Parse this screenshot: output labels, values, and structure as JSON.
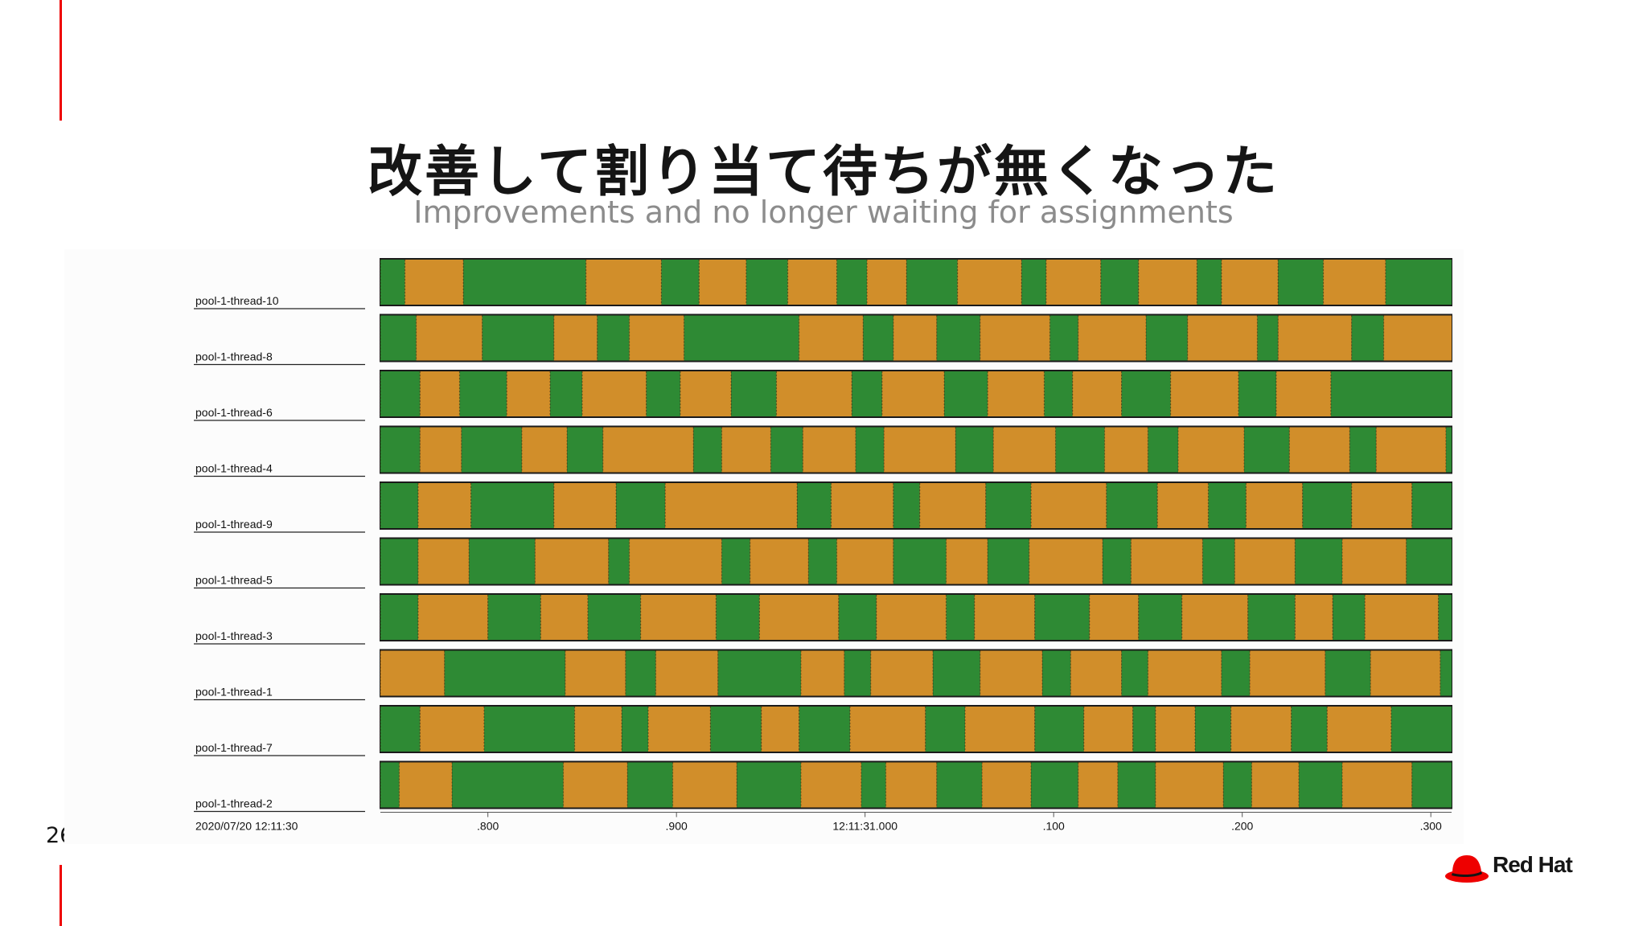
{
  "slide": {
    "title": "改善して割り当て待ちが無くなった",
    "subtitle": "Improvements and no longer waiting for assignments",
    "page_number": "26",
    "logo_text": "Red Hat"
  },
  "colors": {
    "running": "#2e8a34",
    "waiting": "#d18e2a",
    "accent": "#ee0000"
  },
  "chart_data": {
    "type": "timeline",
    "x_start_label": "2020/07/20 12:11:30",
    "x_ticks": [
      {
        "value": 0.8,
        "label": ".800"
      },
      {
        "value": 0.9,
        "label": ".900"
      },
      {
        "value": 1.0,
        "label": "12:11:31.000"
      },
      {
        "value": 1.1,
        "label": ".100"
      },
      {
        "value": 1.2,
        "label": ".200"
      },
      {
        "value": 1.3,
        "label": ".300"
      }
    ],
    "xlim": [
      0.743,
      1.311
    ],
    "x_unit": "seconds after 2020/07/20 12:11:30",
    "states": [
      "running",
      "waiting"
    ],
    "threads": [
      {
        "name": "pool-1-thread-10",
        "segments": [
          [
            "running",
            0.743,
            0.756
          ],
          [
            "waiting",
            0.756,
            0.787
          ],
          [
            "running",
            0.787,
            0.852
          ],
          [
            "waiting",
            0.852,
            0.892
          ],
          [
            "running",
            0.892,
            0.912
          ],
          [
            "waiting",
            0.912,
            0.937
          ],
          [
            "running",
            0.937,
            0.959
          ],
          [
            "waiting",
            0.959,
            0.985
          ],
          [
            "running",
            0.985,
            1.001
          ],
          [
            "waiting",
            1.001,
            1.022
          ],
          [
            "running",
            1.022,
            1.049
          ],
          [
            "waiting",
            1.049,
            1.083
          ],
          [
            "running",
            1.083,
            1.096
          ],
          [
            "waiting",
            1.096,
            1.125
          ],
          [
            "running",
            1.125,
            1.145
          ],
          [
            "waiting",
            1.145,
            1.176
          ],
          [
            "running",
            1.176,
            1.189
          ],
          [
            "waiting",
            1.189,
            1.219
          ],
          [
            "running",
            1.219,
            1.243
          ],
          [
            "waiting",
            1.243,
            1.276
          ],
          [
            "running",
            1.276,
            1.311
          ]
        ]
      },
      {
        "name": "pool-1-thread-8",
        "segments": [
          [
            "running",
            0.743,
            0.762
          ],
          [
            "waiting",
            0.762,
            0.797
          ],
          [
            "running",
            0.797,
            0.835
          ],
          [
            "waiting",
            0.835,
            0.858
          ],
          [
            "running",
            0.858,
            0.875
          ],
          [
            "waiting",
            0.875,
            0.904
          ],
          [
            "running",
            0.904,
            0.965
          ],
          [
            "waiting",
            0.965,
            0.999
          ],
          [
            "running",
            0.999,
            1.015
          ],
          [
            "waiting",
            1.015,
            1.038
          ],
          [
            "running",
            1.038,
            1.061
          ],
          [
            "waiting",
            1.061,
            1.098
          ],
          [
            "running",
            1.098,
            1.113
          ],
          [
            "waiting",
            1.113,
            1.149
          ],
          [
            "running",
            1.149,
            1.171
          ],
          [
            "waiting",
            1.171,
            1.208
          ],
          [
            "running",
            1.208,
            1.219
          ],
          [
            "waiting",
            1.219,
            1.258
          ],
          [
            "running",
            1.258,
            1.275
          ],
          [
            "waiting",
            1.275,
            1.311
          ]
        ]
      },
      {
        "name": "pool-1-thread-6",
        "segments": [
          [
            "running",
            0.743,
            0.764
          ],
          [
            "waiting",
            0.764,
            0.785
          ],
          [
            "running",
            0.785,
            0.81
          ],
          [
            "waiting",
            0.81,
            0.833
          ],
          [
            "running",
            0.833,
            0.85
          ],
          [
            "waiting",
            0.85,
            0.884
          ],
          [
            "running",
            0.884,
            0.902
          ],
          [
            "waiting",
            0.902,
            0.929
          ],
          [
            "running",
            0.929,
            0.953
          ],
          [
            "waiting",
            0.953,
            0.993
          ],
          [
            "running",
            0.993,
            1.009
          ],
          [
            "waiting",
            1.009,
            1.042
          ],
          [
            "running",
            1.042,
            1.065
          ],
          [
            "waiting",
            1.065,
            1.095
          ],
          [
            "running",
            1.095,
            1.11
          ],
          [
            "waiting",
            1.11,
            1.136
          ],
          [
            "running",
            1.136,
            1.162
          ],
          [
            "waiting",
            1.162,
            1.198
          ],
          [
            "running",
            1.198,
            1.218
          ],
          [
            "waiting",
            1.218,
            1.247
          ],
          [
            "running",
            1.247,
            1.311
          ]
        ]
      },
      {
        "name": "pool-1-thread-4",
        "segments": [
          [
            "running",
            0.743,
            0.764
          ],
          [
            "waiting",
            0.764,
            0.786
          ],
          [
            "running",
            0.786,
            0.818
          ],
          [
            "waiting",
            0.818,
            0.842
          ],
          [
            "running",
            0.842,
            0.861
          ],
          [
            "waiting",
            0.861,
            0.909
          ],
          [
            "running",
            0.909,
            0.924
          ],
          [
            "waiting",
            0.924,
            0.95
          ],
          [
            "running",
            0.95,
            0.967
          ],
          [
            "waiting",
            0.967,
            0.995
          ],
          [
            "running",
            0.995,
            1.01
          ],
          [
            "waiting",
            1.01,
            1.048
          ],
          [
            "running",
            1.048,
            1.068
          ],
          [
            "waiting",
            1.068,
            1.101
          ],
          [
            "running",
            1.101,
            1.127
          ],
          [
            "waiting",
            1.127,
            1.15
          ],
          [
            "running",
            1.15,
            1.166
          ],
          [
            "waiting",
            1.166,
            1.201
          ],
          [
            "running",
            1.201,
            1.225
          ],
          [
            "waiting",
            1.225,
            1.257
          ],
          [
            "running",
            1.257,
            1.271
          ],
          [
            "waiting",
            1.271,
            1.308
          ],
          [
            "running",
            1.308,
            1.311
          ]
        ]
      },
      {
        "name": "pool-1-thread-9",
        "segments": [
          [
            "running",
            0.743,
            0.763
          ],
          [
            "waiting",
            0.763,
            0.791
          ],
          [
            "running",
            0.791,
            0.835
          ],
          [
            "waiting",
            0.835,
            0.868
          ],
          [
            "running",
            0.868,
            0.894
          ],
          [
            "waiting",
            0.894,
            0.964
          ],
          [
            "running",
            0.964,
            0.982
          ],
          [
            "waiting",
            0.982,
            1.015
          ],
          [
            "running",
            1.015,
            1.029
          ],
          [
            "waiting",
            1.029,
            1.064
          ],
          [
            "running",
            1.064,
            1.088
          ],
          [
            "waiting",
            1.088,
            1.128
          ],
          [
            "running",
            1.128,
            1.155
          ],
          [
            "waiting",
            1.155,
            1.182
          ],
          [
            "running",
            1.182,
            1.202
          ],
          [
            "waiting",
            1.202,
            1.232
          ],
          [
            "running",
            1.232,
            1.258
          ],
          [
            "waiting",
            1.258,
            1.29
          ],
          [
            "running",
            1.29,
            1.311
          ]
        ]
      },
      {
        "name": "pool-1-thread-5",
        "segments": [
          [
            "running",
            0.743,
            0.763
          ],
          [
            "waiting",
            0.763,
            0.79
          ],
          [
            "running",
            0.79,
            0.825
          ],
          [
            "waiting",
            0.825,
            0.864
          ],
          [
            "running",
            0.864,
            0.875
          ],
          [
            "waiting",
            0.875,
            0.924
          ],
          [
            "running",
            0.924,
            0.939
          ],
          [
            "waiting",
            0.939,
            0.97
          ],
          [
            "running",
            0.97,
            0.985
          ],
          [
            "waiting",
            0.985,
            1.015
          ],
          [
            "running",
            1.015,
            1.043
          ],
          [
            "waiting",
            1.043,
            1.065
          ],
          [
            "running",
            1.065,
            1.087
          ],
          [
            "waiting",
            1.087,
            1.126
          ],
          [
            "running",
            1.126,
            1.141
          ],
          [
            "waiting",
            1.141,
            1.179
          ],
          [
            "running",
            1.179,
            1.196
          ],
          [
            "waiting",
            1.196,
            1.228
          ],
          [
            "running",
            1.228,
            1.253
          ],
          [
            "waiting",
            1.253,
            1.287
          ],
          [
            "running",
            1.287,
            1.311
          ]
        ]
      },
      {
        "name": "pool-1-thread-3",
        "segments": [
          [
            "running",
            0.743,
            0.763
          ],
          [
            "waiting",
            0.763,
            0.8
          ],
          [
            "running",
            0.8,
            0.828
          ],
          [
            "waiting",
            0.828,
            0.853
          ],
          [
            "running",
            0.853,
            0.881
          ],
          [
            "waiting",
            0.881,
            0.921
          ],
          [
            "running",
            0.921,
            0.944
          ],
          [
            "waiting",
            0.944,
            0.986
          ],
          [
            "running",
            0.986,
            1.006
          ],
          [
            "waiting",
            1.006,
            1.043
          ],
          [
            "running",
            1.043,
            1.058
          ],
          [
            "waiting",
            1.058,
            1.09
          ],
          [
            "running",
            1.09,
            1.119
          ],
          [
            "waiting",
            1.119,
            1.145
          ],
          [
            "running",
            1.145,
            1.168
          ],
          [
            "waiting",
            1.168,
            1.203
          ],
          [
            "running",
            1.203,
            1.228
          ],
          [
            "waiting",
            1.228,
            1.248
          ],
          [
            "running",
            1.248,
            1.265
          ],
          [
            "waiting",
            1.265,
            1.304
          ],
          [
            "running",
            1.304,
            1.311
          ]
        ]
      },
      {
        "name": "pool-1-thread-1",
        "segments": [
          [
            "waiting",
            0.743,
            0.777
          ],
          [
            "running",
            0.777,
            0.841
          ],
          [
            "waiting",
            0.841,
            0.873
          ],
          [
            "running",
            0.873,
            0.889
          ],
          [
            "waiting",
            0.889,
            0.922
          ],
          [
            "running",
            0.922,
            0.966
          ],
          [
            "waiting",
            0.966,
            0.989
          ],
          [
            "running",
            0.989,
            1.003
          ],
          [
            "waiting",
            1.003,
            1.036
          ],
          [
            "running",
            1.036,
            1.061
          ],
          [
            "waiting",
            1.061,
            1.094
          ],
          [
            "running",
            1.094,
            1.109
          ],
          [
            "waiting",
            1.109,
            1.136
          ],
          [
            "running",
            1.136,
            1.15
          ],
          [
            "waiting",
            1.15,
            1.189
          ],
          [
            "running",
            1.189,
            1.204
          ],
          [
            "waiting",
            1.204,
            1.244
          ],
          [
            "running",
            1.244,
            1.268
          ],
          [
            "waiting",
            1.268,
            1.305
          ],
          [
            "running",
            1.305,
            1.311
          ]
        ]
      },
      {
        "name": "pool-1-thread-7",
        "segments": [
          [
            "running",
            0.743,
            0.764
          ],
          [
            "waiting",
            0.764,
            0.798
          ],
          [
            "running",
            0.798,
            0.846
          ],
          [
            "waiting",
            0.846,
            0.871
          ],
          [
            "running",
            0.871,
            0.885
          ],
          [
            "waiting",
            0.885,
            0.918
          ],
          [
            "running",
            0.918,
            0.945
          ],
          [
            "waiting",
            0.945,
            0.965
          ],
          [
            "running",
            0.965,
            0.992
          ],
          [
            "waiting",
            0.992,
            1.032
          ],
          [
            "running",
            1.032,
            1.053
          ],
          [
            "waiting",
            1.053,
            1.09
          ],
          [
            "running",
            1.09,
            1.116
          ],
          [
            "waiting",
            1.116,
            1.142
          ],
          [
            "running",
            1.142,
            1.154
          ],
          [
            "waiting",
            1.154,
            1.175
          ],
          [
            "running",
            1.175,
            1.194
          ],
          [
            "waiting",
            1.194,
            1.226
          ],
          [
            "running",
            1.226,
            1.245
          ],
          [
            "waiting",
            1.245,
            1.279
          ],
          [
            "running",
            1.279,
            1.311
          ]
        ]
      },
      {
        "name": "pool-1-thread-2",
        "segments": [
          [
            "running",
            0.743,
            0.753
          ],
          [
            "waiting",
            0.753,
            0.781
          ],
          [
            "running",
            0.781,
            0.84
          ],
          [
            "waiting",
            0.84,
            0.874
          ],
          [
            "running",
            0.874,
            0.898
          ],
          [
            "waiting",
            0.898,
            0.932
          ],
          [
            "running",
            0.932,
            0.966
          ],
          [
            "waiting",
            0.966,
            0.998
          ],
          [
            "running",
            0.998,
            1.011
          ],
          [
            "waiting",
            1.011,
            1.038
          ],
          [
            "running",
            1.038,
            1.062
          ],
          [
            "waiting",
            1.062,
            1.088
          ],
          [
            "running",
            1.088,
            1.113
          ],
          [
            "waiting",
            1.113,
            1.134
          ],
          [
            "running",
            1.134,
            1.154
          ],
          [
            "waiting",
            1.154,
            1.19
          ],
          [
            "running",
            1.19,
            1.205
          ],
          [
            "waiting",
            1.205,
            1.23
          ],
          [
            "running",
            1.23,
            1.253
          ],
          [
            "waiting",
            1.253,
            1.29
          ],
          [
            "running",
            1.29,
            1.311
          ]
        ]
      }
    ]
  }
}
